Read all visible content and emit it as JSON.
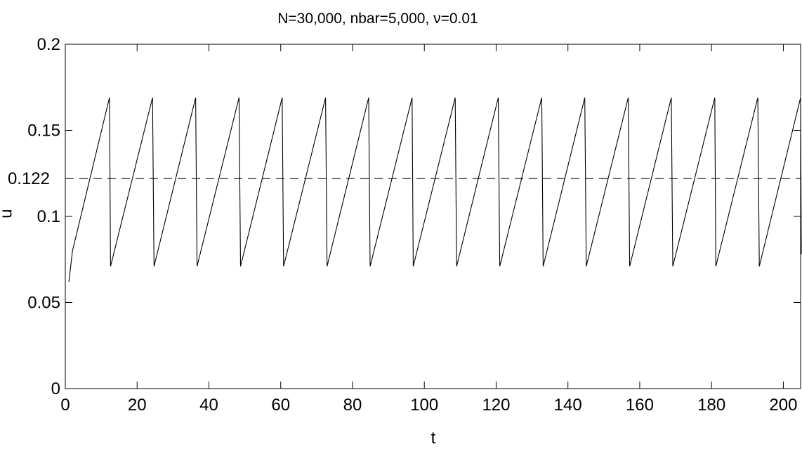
{
  "chart_data": {
    "type": "line",
    "title": "N=30,000, nbar=5,000, ν=0.01",
    "xlabel": "t",
    "ylabel": "u",
    "xlim": [
      0,
      205
    ],
    "ylim": [
      0,
      0.2
    ],
    "xticks": [
      0,
      20,
      40,
      60,
      80,
      100,
      120,
      140,
      160,
      180,
      200
    ],
    "yticks": [
      0,
      0.05,
      0.1,
      0.15,
      0.2
    ],
    "ytick_labels": [
      "0",
      "0.05",
      "0.1",
      "0.15",
      "0.2"
    ],
    "extra_ytick": {
      "value": 0.122,
      "label": "0.122"
    },
    "grid": false,
    "series": [
      {
        "style": "solid",
        "color": "#000000",
        "x": [
          1,
          2,
          12.3,
          12.6,
          24.3,
          24.7,
          36.3,
          36.7,
          48.4,
          48.8,
          60.4,
          60.8,
          72.5,
          72.9,
          84.5,
          84.9,
          96.6,
          96.9,
          108.6,
          109,
          120.6,
          121,
          132.7,
          133.1,
          144.7,
          145.1,
          156.8,
          157.2,
          168.8,
          169.2,
          180.9,
          181.2,
          192.9,
          193.3,
          204.8,
          205
        ],
        "y": [
          0.062,
          0.08,
          0.169,
          0.071,
          0.169,
          0.071,
          0.169,
          0.071,
          0.169,
          0.071,
          0.169,
          0.071,
          0.169,
          0.071,
          0.169,
          0.071,
          0.169,
          0.071,
          0.169,
          0.071,
          0.169,
          0.071,
          0.169,
          0.071,
          0.169,
          0.071,
          0.169,
          0.071,
          0.169,
          0.071,
          0.169,
          0.071,
          0.169,
          0.071,
          0.169,
          0.078
        ]
      },
      {
        "style": "dashed",
        "color": "#000000",
        "x": [
          0,
          205
        ],
        "y": [
          0.122,
          0.122
        ]
      }
    ]
  }
}
